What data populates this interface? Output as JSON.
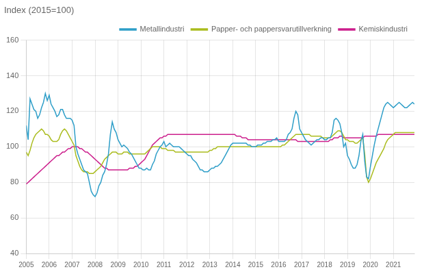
{
  "chart_data": {
    "type": "line",
    "title": "Index (2015=100)",
    "x": [
      2005,
      2005.0833333333333,
      2005.1666666666667,
      2005.25,
      2005.3333333333333,
      2005.4166666666667,
      2005.5,
      2005.5833333333333,
      2005.6666666666667,
      2005.75,
      2005.8333333333333,
      2005.9166666666667,
      2006,
      2006.0833333333333,
      2006.1666666666667,
      2006.25,
      2006.3333333333333,
      2006.4166666666667,
      2006.5,
      2006.5833333333333,
      2006.6666666666667,
      2006.75,
      2006.8333333333333,
      2006.9166666666667,
      2007,
      2007.0833333333333,
      2007.1666666666667,
      2007.25,
      2007.3333333333333,
      2007.4166666666667,
      2007.5,
      2007.5833333333333,
      2007.6666666666667,
      2007.75,
      2007.8333333333333,
      2007.9166666666667,
      2008,
      2008.0833333333333,
      2008.1666666666667,
      2008.25,
      2008.3333333333333,
      2008.4166666666667,
      2008.5,
      2008.5833333333333,
      2008.6666666666667,
      2008.75,
      2008.8333333333333,
      2008.9166666666667,
      2009,
      2009.0833333333333,
      2009.1666666666667,
      2009.25,
      2009.3333333333333,
      2009.4166666666667,
      2009.5,
      2009.5833333333333,
      2009.6666666666667,
      2009.75,
      2009.8333333333333,
      2009.9166666666667,
      2010,
      2010.0833333333333,
      2010.1666666666667,
      2010.25,
      2010.3333333333333,
      2010.4166666666667,
      2010.5,
      2010.5833333333333,
      2010.6666666666667,
      2010.75,
      2010.8333333333333,
      2010.9166666666667,
      2011,
      2011.0833333333333,
      2011.1666666666667,
      2011.25,
      2011.3333333333333,
      2011.4166666666667,
      2011.5,
      2011.5833333333333,
      2011.6666666666667,
      2011.75,
      2011.8333333333333,
      2011.9166666666667,
      2012,
      2012.0833333333333,
      2012.1666666666667,
      2012.25,
      2012.3333333333333,
      2012.4166666666667,
      2012.5,
      2012.5833333333333,
      2012.6666666666667,
      2012.75,
      2012.8333333333333,
      2012.9166666666667,
      2013,
      2013.0833333333333,
      2013.1666666666667,
      2013.25,
      2013.3333333333333,
      2013.4166666666667,
      2013.5,
      2013.5833333333333,
      2013.6666666666667,
      2013.75,
      2013.8333333333333,
      2013.9166666666667,
      2014,
      2014.0833333333333,
      2014.1666666666667,
      2014.25,
      2014.3333333333333,
      2014.4166666666667,
      2014.5,
      2014.5833333333333,
      2014.6666666666667,
      2014.75,
      2014.8333333333333,
      2014.9166666666667,
      2015,
      2015.0833333333333,
      2015.1666666666667,
      2015.25,
      2015.3333333333333,
      2015.4166666666667,
      2015.5,
      2015.5833333333333,
      2015.6666666666667,
      2015.75,
      2015.8333333333333,
      2015.9166666666667,
      2016,
      2016.0833333333333,
      2016.1666666666667,
      2016.25,
      2016.3333333333333,
      2016.4166666666667,
      2016.5,
      2016.5833333333333,
      2016.6666666666667,
      2016.75,
      2016.8333333333333,
      2016.9166666666667,
      2017,
      2017.0833333333333,
      2017.1666666666667,
      2017.25,
      2017.3333333333333,
      2017.4166666666667,
      2017.5,
      2017.5833333333333,
      2017.6666666666667,
      2017.75,
      2017.8333333333333,
      2017.9166666666667,
      2018,
      2018.0833333333333,
      2018.1666666666667,
      2018.25,
      2018.3333333333333,
      2018.4166666666667,
      2018.5,
      2018.5833333333333,
      2018.6666666666667,
      2018.75,
      2018.8333333333333,
      2018.9166666666667,
      2019,
      2019.0833333333333,
      2019.1666666666667,
      2019.25,
      2019.3333333333333,
      2019.4166666666667,
      2019.5,
      2019.5833333333333,
      2019.6666666666667,
      2019.75,
      2019.8333333333333,
      2019.9166666666667,
      2020,
      2020.0833333333333,
      2020.1666666666667,
      2020.25,
      2020.3333333333333,
      2020.4166666666667,
      2020.5,
      2020.5833333333333,
      2020.6666666666667,
      2020.75,
      2020.8333333333333,
      2020.9166666666667,
      2021,
      2021.0833333333333,
      2021.1666666666667,
      2021.25,
      2021.3333333333333,
      2021.4166666666667,
      2021.5,
      2021.5833333333333,
      2021.6666666666667,
      2021.75,
      2021.8333333333333,
      2021.9166666666667
    ],
    "series": [
      {
        "name": "Metallindustri",
        "color": "#2E9EC8",
        "values": [
          112,
          104,
          127,
          124,
          121,
          120,
          116,
          118,
          122,
          125,
          130,
          126,
          129,
          124,
          122,
          120,
          117,
          118,
          121,
          121,
          118,
          116,
          116,
          116,
          115,
          112,
          100,
          96,
          93,
          90,
          87,
          86,
          85,
          80,
          75,
          73,
          72,
          74,
          78,
          80,
          84,
          86,
          90,
          96,
          107,
          114,
          110,
          108,
          104,
          102,
          100,
          101,
          100,
          99,
          97,
          96,
          94,
          92,
          90,
          88,
          88,
          87,
          87,
          88,
          87,
          87,
          90,
          92,
          96,
          98,
          100,
          101,
          103,
          100,
          101,
          102,
          101,
          100,
          100,
          100,
          100,
          99,
          98,
          97,
          96,
          95,
          95,
          93,
          92,
          91,
          89,
          87,
          87,
          86,
          86,
          86,
          87,
          88,
          88,
          89,
          89,
          90,
          91,
          93,
          95,
          97,
          99,
          101,
          102,
          102,
          102,
          102,
          102,
          102,
          102,
          102,
          101,
          101,
          100,
          100,
          100,
          101,
          101,
          101,
          102,
          102,
          103,
          103,
          103,
          104,
          104,
          105,
          103,
          103,
          103,
          103,
          104,
          107,
          108,
          110,
          116,
          120,
          118,
          110,
          108,
          106,
          104,
          103,
          102,
          101,
          102,
          103,
          104,
          104,
          105,
          105,
          104,
          104,
          105,
          105,
          108,
          115,
          116,
          115,
          113,
          108,
          100,
          102,
          95,
          93,
          90,
          88,
          88,
          90,
          95,
          103,
          107,
          92,
          83,
          82,
          89,
          95,
          101,
          106,
          110,
          114,
          118,
          122,
          124,
          125,
          124,
          123,
          122,
          123,
          124,
          125,
          124,
          123,
          122,
          122,
          123,
          124,
          125,
          124
        ]
      },
      {
        "name": "Papper- och pappersvarutillverkning",
        "color": "#AABC1E",
        "values": [
          97,
          95,
          98,
          102,
          105,
          107,
          108,
          109,
          110,
          109,
          107,
          107,
          106,
          104,
          103,
          103,
          103,
          104,
          107,
          109,
          110,
          109,
          107,
          105,
          103,
          101,
          95,
          92,
          89,
          87,
          86,
          86,
          86,
          85,
          85,
          85,
          86,
          87,
          88,
          89,
          91,
          93,
          94,
          95,
          96,
          97,
          97,
          97,
          96,
          96,
          96,
          97,
          97,
          97,
          96,
          96,
          96,
          96,
          96,
          96,
          96,
          96,
          96,
          97,
          98,
          99,
          100,
          100,
          100,
          100,
          100,
          99,
          99,
          99,
          98,
          98,
          98,
          98,
          97,
          97,
          97,
          97,
          97,
          97,
          97,
          97,
          97,
          97,
          97,
          97,
          97,
          97,
          97,
          97,
          97,
          97,
          98,
          98,
          99,
          99,
          100,
          100,
          100,
          100,
          100,
          100,
          100,
          100,
          100,
          100,
          100,
          100,
          100,
          100,
          100,
          100,
          100,
          100,
          100,
          100,
          100,
          100,
          100,
          100,
          100,
          100,
          100,
          100,
          100,
          100,
          100,
          100,
          100,
          100,
          101,
          101,
          102,
          103,
          104,
          105,
          106,
          107,
          107,
          107,
          107,
          107,
          107,
          107,
          107,
          106,
          106,
          106,
          106,
          106,
          106,
          105,
          105,
          105,
          105,
          105,
          106,
          107,
          108,
          109,
          109,
          108,
          106,
          104,
          104,
          103,
          103,
          103,
          102,
          102,
          103,
          104,
          105,
          96,
          83,
          80,
          82,
          85,
          88,
          91,
          93,
          95,
          97,
          99,
          102,
          104,
          105,
          106,
          107,
          108,
          108,
          108,
          108,
          108,
          108,
          108,
          108,
          108,
          108,
          108
        ]
      },
      {
        "name": "Kemiskindustri",
        "color": "#CC1E8C",
        "values": [
          79,
          80,
          81,
          82,
          83,
          84,
          85,
          86,
          87,
          88,
          89,
          90,
          91,
          92,
          93,
          94,
          95,
          95,
          96,
          97,
          97,
          98,
          99,
          99,
          100,
          100,
          100,
          100,
          99,
          99,
          98,
          97,
          97,
          96,
          95,
          94,
          93,
          92,
          91,
          90,
          89,
          88,
          88,
          87,
          87,
          87,
          87,
          87,
          87,
          87,
          87,
          87,
          87,
          87,
          88,
          88,
          88,
          89,
          89,
          90,
          91,
          92,
          93,
          95,
          97,
          99,
          101,
          102,
          103,
          104,
          105,
          105,
          106,
          106,
          107,
          107,
          107,
          107,
          107,
          107,
          107,
          107,
          107,
          107,
          107,
          107,
          107,
          107,
          107,
          107,
          107,
          107,
          107,
          107,
          107,
          107,
          107,
          107,
          107,
          107,
          107,
          107,
          107,
          107,
          107,
          107,
          107,
          107,
          107,
          107,
          106,
          106,
          106,
          105,
          105,
          105,
          104,
          104,
          104,
          104,
          104,
          104,
          104,
          104,
          104,
          104,
          104,
          104,
          104,
          104,
          104,
          104,
          104,
          104,
          104,
          104,
          104,
          104,
          104,
          104,
          104,
          104,
          103,
          103,
          103,
          103,
          103,
          103,
          103,
          103,
          103,
          103,
          103,
          103,
          103,
          103,
          103,
          103,
          103,
          104,
          104,
          105,
          105,
          105,
          106,
          106,
          105,
          105,
          105,
          105,
          105,
          105,
          105,
          105,
          105,
          105,
          105,
          106,
          106,
          106,
          106,
          106,
          106,
          106,
          107,
          107,
          107,
          107,
          107,
          107,
          107,
          107,
          107,
          107,
          107,
          107,
          107,
          107,
          107,
          107,
          107,
          107,
          107,
          107
        ]
      }
    ],
    "xlim": [
      2005.0,
      2021.917
    ],
    "xticks": [
      2005,
      2006,
      2007,
      2008,
      2009,
      2010,
      2011,
      2012,
      2013,
      2014,
      2015,
      2016,
      2017,
      2018,
      2019,
      2020,
      2021
    ],
    "ylim": [
      40,
      160
    ],
    "yticks": [
      40,
      60,
      80,
      100,
      120,
      140,
      160
    ],
    "grid": true,
    "legend": "upper right"
  }
}
